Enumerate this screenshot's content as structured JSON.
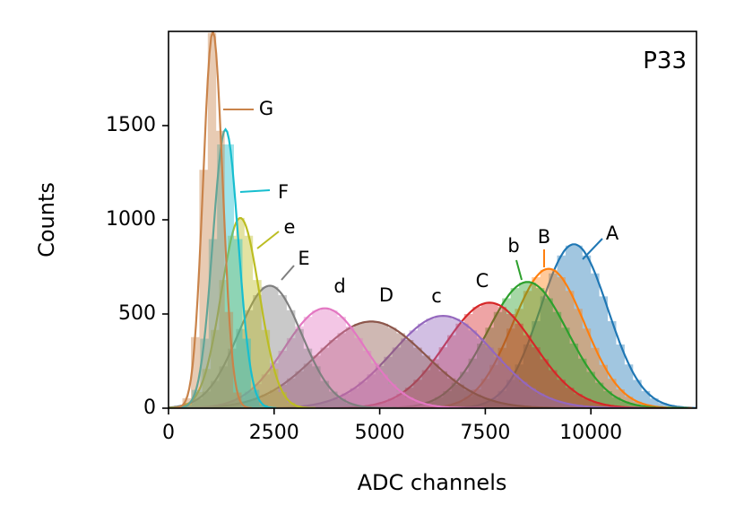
{
  "chart_data": {
    "type": "area",
    "panel_label": "P33",
    "xlabel": "ADC channels",
    "ylabel": "Counts",
    "xlim": [
      0,
      12500
    ],
    "ylim": [
      0,
      2000
    ],
    "xticks": [
      0,
      2500,
      5000,
      7500,
      10000
    ],
    "xtick_labels": [
      "0",
      "2500",
      "5000",
      "7500",
      "10000"
    ],
    "yticks": [
      0,
      500,
      1000,
      1500
    ],
    "ytick_labels": [
      "0",
      "500",
      "1000",
      "1500"
    ],
    "grid": false,
    "series": [
      {
        "name": "A",
        "color": "#1f77b4",
        "peak_x": 9600,
        "peak_y": 870,
        "sigma": 800
      },
      {
        "name": "B",
        "color": "#ff7f0e",
        "peak_x": 9000,
        "peak_y": 740,
        "sigma": 850
      },
      {
        "name": "b",
        "color": "#2ca02c",
        "peak_x": 8500,
        "peak_y": 670,
        "sigma": 950
      },
      {
        "name": "C",
        "color": "#d62728",
        "peak_x": 7600,
        "peak_y": 560,
        "sigma": 1050
      },
      {
        "name": "c",
        "color": "#9467bd",
        "peak_x": 6500,
        "peak_y": 490,
        "sigma": 1200
      },
      {
        "name": "D",
        "color": "#8c564b",
        "peak_x": 4800,
        "peak_y": 460,
        "sigma": 1300
      },
      {
        "name": "d",
        "color": "#e377c2",
        "peak_x": 3700,
        "peak_y": 530,
        "sigma": 950
      },
      {
        "name": "E",
        "color": "#7f7f7f",
        "peak_x": 2400,
        "peak_y": 650,
        "sigma": 750
      },
      {
        "name": "e",
        "color": "#bcbd22",
        "peak_x": 1700,
        "peak_y": 1010,
        "sigma": 450
      },
      {
        "name": "F",
        "color": "#17becf",
        "peak_x": 1350,
        "peak_y": 1480,
        "sigma": 300
      },
      {
        "name": "G",
        "color": "#c9834a",
        "peak_x": 1050,
        "peak_y": 2000,
        "sigma": 230
      }
    ]
  }
}
